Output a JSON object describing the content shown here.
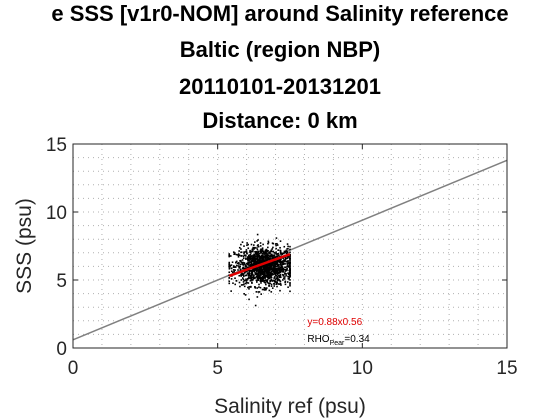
{
  "chart_data": {
    "type": "scatter",
    "title_lines": [
      "e SSS [v1r0-NOM] around Salinity reference",
      "Baltic (region NBP)",
      "20110101-20131201",
      "Distance: 0 km"
    ],
    "xlabel": "Salinity ref (psu)",
    "ylabel": "SSS (psu)",
    "xlim": [
      0,
      15
    ],
    "ylim": [
      0,
      15
    ],
    "xticks": [
      0,
      5,
      10,
      15
    ],
    "yticks": [
      0,
      5,
      10,
      15
    ],
    "grid": true,
    "scatter_cluster": {
      "x_center": 6.6,
      "x_spread": 0.5,
      "y_center": 6.0,
      "y_spread": 1.3,
      "x_range": [
        5.4,
        7.5
      ],
      "y_range": [
        2.8,
        9.5
      ],
      "point_count": 1500,
      "color": "#000000"
    },
    "reference_line": {
      "x": [
        0,
        15
      ],
      "y": [
        0.6,
        13.8
      ],
      "color": "#808080"
    },
    "fit_line": {
      "x": [
        5.4,
        7.5
      ],
      "y": [
        5.3,
        6.9
      ],
      "color": "#e00000"
    },
    "annotations": {
      "fit_eq": "y=0.88x0.56",
      "rho_prefix": "RHO",
      "rho_sub": "Pear",
      "rho_value": "=0.34"
    },
    "colors": {
      "axis": "#262626",
      "grid": "#b0b0b0"
    }
  }
}
